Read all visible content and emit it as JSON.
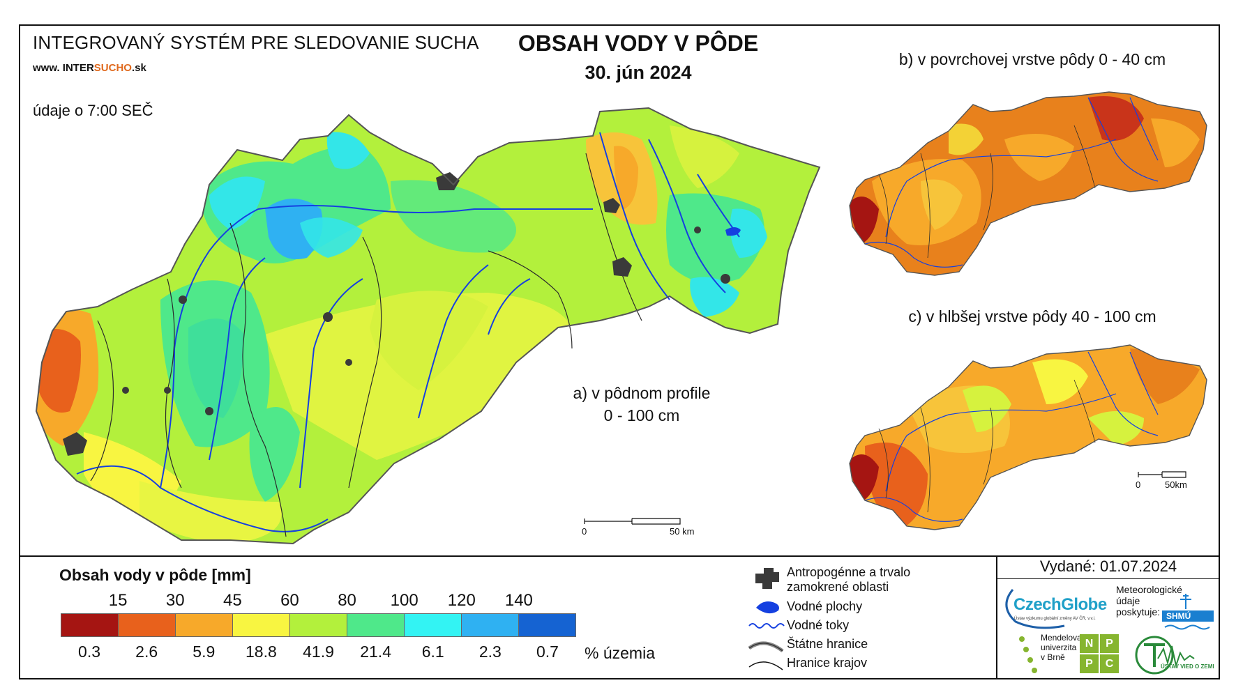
{
  "header": {
    "system_name": "INTEGROVANÝ SYSTÉM PRE SLEDOVANIE SUCHA",
    "website_prefix": "www. INTER",
    "website_accent": "SUCHO",
    "website_suffix": ".sk",
    "data_time": "údaje o 7:00 SEČ",
    "title": "OBSAH VODY V PÔDE",
    "date": "30. jún 2024"
  },
  "panels": {
    "a_line1": "a) v pôdnom profile",
    "a_line2": "0 - 100 cm",
    "b": "b) v povrchovej vrstve pôdy 0 - 40 cm",
    "c": "c) v hlbšej vrstve pôdy 40 - 100 cm"
  },
  "scale_bars": {
    "main": {
      "zero": "0",
      "end": "50 km"
    },
    "small": {
      "zero": "0",
      "end": "50km"
    }
  },
  "legend": {
    "title": "Obsah vody v pôde  [mm]",
    "thresholds": [
      "15",
      "30",
      "45",
      "60",
      "80",
      "100",
      "120",
      "140"
    ],
    "classes": [
      {
        "color": "#a51512",
        "percent": "0.3"
      },
      {
        "color": "#e8611c",
        "percent": "2.6"
      },
      {
        "color": "#f7a92a",
        "percent": "5.9"
      },
      {
        "color": "#f8f541",
        "percent": "18.8"
      },
      {
        "color": "#b3f03c",
        "percent": "41.9"
      },
      {
        "color": "#4fe88a",
        "percent": "21.4"
      },
      {
        "color": "#33f3f3",
        "percent": "6.1"
      },
      {
        "color": "#2fb1f2",
        "percent": "2.3"
      },
      {
        "color": "#1563d2",
        "percent": "0.7"
      }
    ],
    "percent_unit": "% územia"
  },
  "map_key": {
    "anthropogenic": "Antropogénne a trvalo",
    "anthropogenic_2": "zamokrené oblasti",
    "water_bodies": "Vodné plochy",
    "streams": "Vodné toky",
    "state_border": "Štátne hranice",
    "region_border": "Hranice krajov"
  },
  "footer": {
    "issued": "Vydané: 01.07.2024",
    "czechglobe": "CzechGlobe",
    "czechglobe_sub": "Ústav výzkumu globální změny AV ČR, v.v.i.",
    "meteo_line1": "Meteorologické",
    "meteo_line2": "údaje",
    "meteo_line3": "poskytuje:",
    "shmu": "SHMÚ",
    "mendel_1": "Mendelova",
    "mendel_2": "univerzita",
    "mendel_3": "v Brně",
    "npc": [
      "N",
      "P",
      "P",
      "C"
    ],
    "uvz": "ÚSTAV VIED O ZEMI"
  },
  "colors": {
    "water": "#1540e0",
    "urban": "#3a3a3a",
    "border": "#333333"
  }
}
